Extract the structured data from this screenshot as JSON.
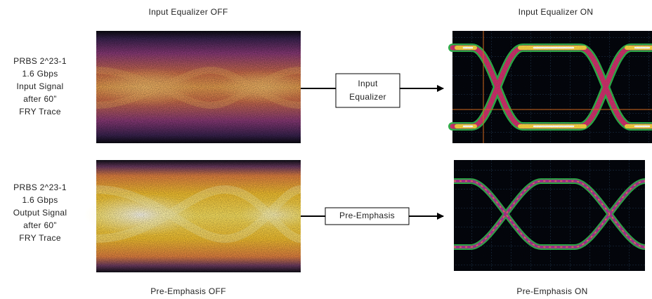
{
  "columns": {
    "top_left": "Input Equalizer OFF",
    "top_right": "Input Equalizer ON",
    "bottom_left": "Pre-Emphasis OFF",
    "bottom_right": "Pre-Emphasis ON"
  },
  "rows": [
    {
      "label_lines": [
        "PRBS 2^23-1",
        "1.6 Gbps",
        "Input Signal",
        "after 60”",
        "FRY Trace"
      ],
      "block_lines": [
        "Input",
        "Equalizer"
      ]
    },
    {
      "label_lines": [
        "PRBS 2^23-1",
        "1.6 Gbps",
        "Output Signal",
        "after 60”",
        "FRY Trace"
      ],
      "block_lines": [
        "Pre-Emphasis"
      ]
    }
  ]
}
